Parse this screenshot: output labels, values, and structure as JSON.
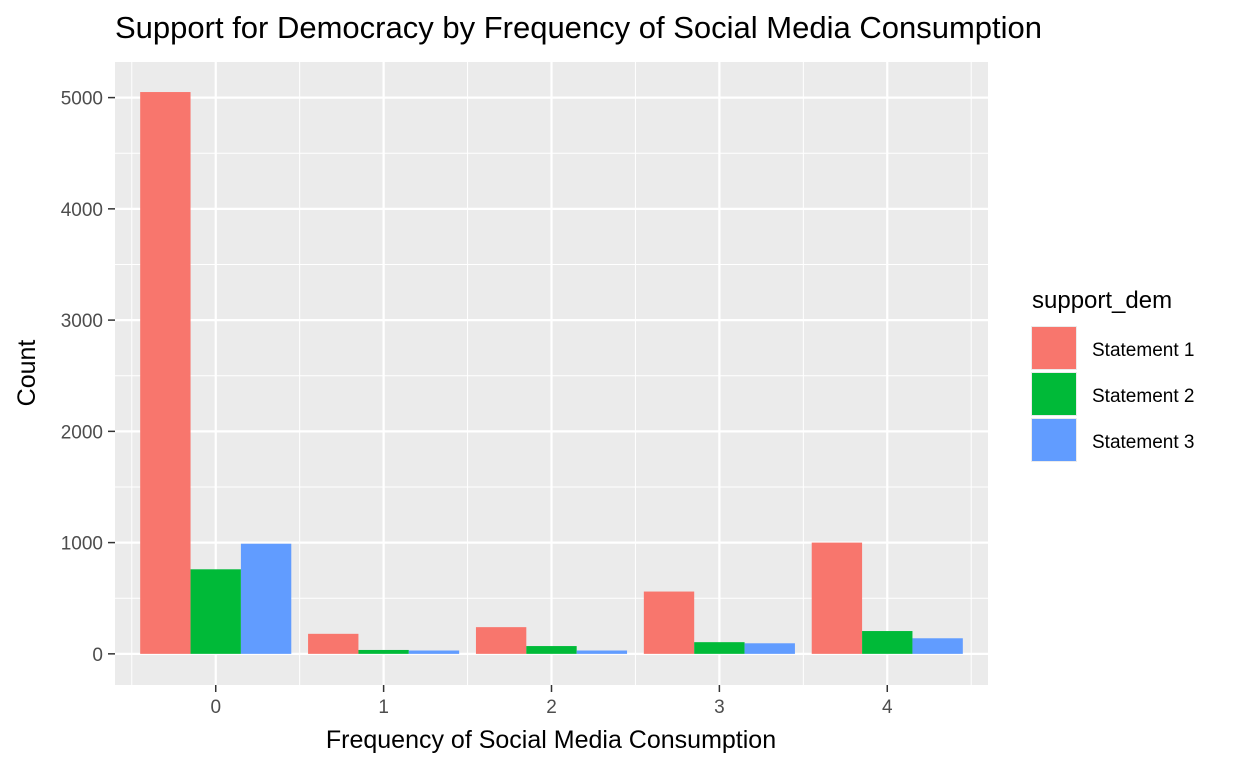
{
  "chart_data": {
    "type": "bar",
    "title": "Support for Democracy by Frequency of Social Media Consumption",
    "xlabel": "Frequency of Social Media Consumption",
    "ylabel": "Count",
    "categories": [
      "0",
      "1",
      "2",
      "3",
      "4"
    ],
    "series": [
      {
        "name": "Statement 1",
        "color": "#F8766D",
        "values": [
          5050,
          180,
          240,
          560,
          1000
        ]
      },
      {
        "name": "Statement 2",
        "color": "#00BA38",
        "values": [
          760,
          35,
          70,
          105,
          205
        ]
      },
      {
        "name": "Statement 3",
        "color": "#619CFF",
        "values": [
          990,
          30,
          30,
          95,
          140
        ]
      }
    ],
    "ylim": [
      -280,
      5320
    ],
    "yticks": [
      0,
      1000,
      2000,
      3000,
      4000,
      5000
    ],
    "grid": true,
    "legend": {
      "title": "support_dem",
      "placement": "right"
    },
    "panel_background": "#EBEBEB"
  }
}
